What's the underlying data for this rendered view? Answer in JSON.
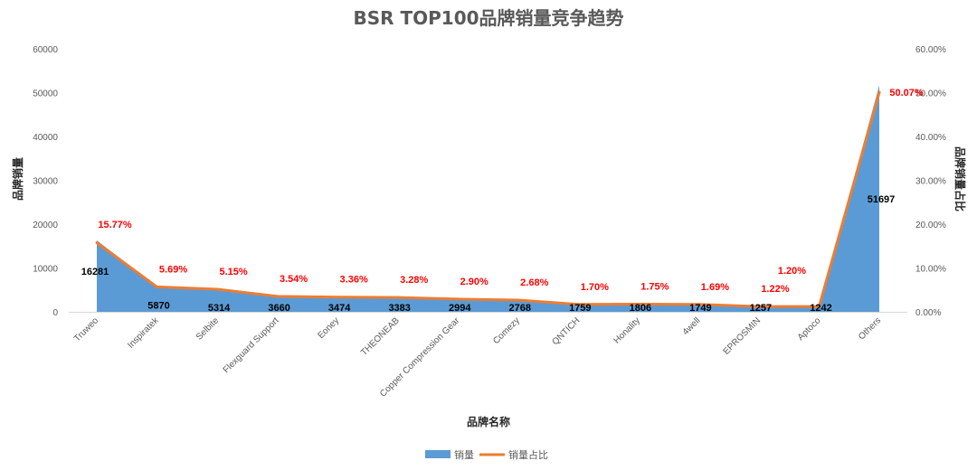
{
  "chart_data": {
    "type": "area",
    "title": "BSR TOP100品牌销量竞争趋势",
    "xlabel": "品牌名称",
    "ylabel": "品牌销量",
    "y2label": "品牌销量占比",
    "categories": [
      "Truweo",
      "Inspiratek",
      "Selbite",
      "Flexguard Support",
      "Eoney",
      "THEONEAB",
      "Copper Compression Gear",
      "Comezy",
      "QNTICH",
      "Honality",
      "4well",
      "EPROSMIN",
      "Aptoco",
      "Others"
    ],
    "series": [
      {
        "name": "销量",
        "type": "area",
        "axis": "left",
        "color": "#5b9bd5",
        "values": [
          16281,
          5870,
          5314,
          3660,
          3474,
          3383,
          2994,
          2768,
          1759,
          1806,
          1749,
          1257,
          1242,
          51697
        ],
        "labels": [
          "16281",
          "5870",
          "5314",
          "3660",
          "3474",
          "3383",
          "2994",
          "2768",
          "1759",
          "1806",
          "1749",
          "1257",
          "1242",
          "51697"
        ]
      },
      {
        "name": "销量占比",
        "type": "line",
        "axis": "right",
        "color": "#ed7d31",
        "values": [
          15.77,
          5.69,
          5.15,
          3.54,
          3.36,
          3.28,
          2.9,
          2.68,
          1.7,
          1.75,
          1.69,
          1.22,
          1.2,
          50.07
        ],
        "labels": [
          "15.77%",
          "5.69%",
          "5.15%",
          "3.54%",
          "3.36%",
          "3.28%",
          "2.90%",
          "2.68%",
          "1.70%",
          "1.75%",
          "1.69%",
          "1.22%",
          "1.20%",
          "50.07%"
        ]
      }
    ],
    "ylim": [
      0,
      60000
    ],
    "yticks": [
      "0",
      "10000",
      "20000",
      "30000",
      "40000",
      "50000",
      "60000"
    ],
    "y2lim": [
      0,
      60
    ],
    "y2ticks": [
      "0.00%",
      "10.00%",
      "20.00%",
      "30.00%",
      "40.00%",
      "50.00%",
      "60.00%"
    ],
    "grid": false,
    "legend": "bottom"
  }
}
